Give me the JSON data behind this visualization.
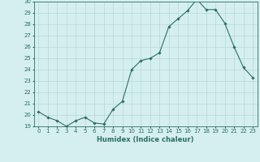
{
  "x": [
    0,
    1,
    2,
    3,
    4,
    5,
    6,
    7,
    8,
    9,
    10,
    11,
    12,
    13,
    14,
    15,
    16,
    17,
    18,
    19,
    20,
    21,
    22,
    23
  ],
  "y": [
    20.3,
    19.8,
    19.5,
    19.0,
    19.5,
    19.8,
    19.3,
    19.2,
    20.5,
    21.2,
    24.0,
    24.8,
    25.0,
    25.5,
    27.8,
    28.5,
    29.2,
    30.2,
    29.3,
    29.3,
    28.1,
    26.0,
    24.2,
    23.3
  ],
  "xlabel": "Humidex (Indice chaleur)",
  "xlim": [
    -0.5,
    23.5
  ],
  "ylim": [
    19,
    30
  ],
  "yticks": [
    19,
    20,
    21,
    22,
    23,
    24,
    25,
    26,
    27,
    28,
    29,
    30
  ],
  "xticks": [
    0,
    1,
    2,
    3,
    4,
    5,
    6,
    7,
    8,
    9,
    10,
    11,
    12,
    13,
    14,
    15,
    16,
    17,
    18,
    19,
    20,
    21,
    22,
    23
  ],
  "line_color": "#2d6e65",
  "marker": "D",
  "marker_size": 1.8,
  "marker_edge_width": 0.3,
  "line_width": 0.8,
  "bg_color": "#d5efef",
  "grid_color": "#b8d8d8",
  "label_color": "#2d6e65",
  "tick_color": "#2d6e65",
  "label_fontsize": 6,
  "tick_fontsize": 5
}
